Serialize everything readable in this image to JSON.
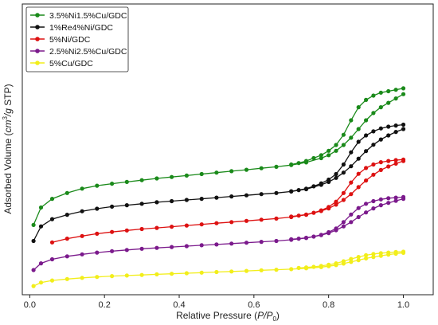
{
  "chart_data": {
    "type": "line",
    "title": "",
    "xlabel": "Relative Pressure (P/P0)",
    "ylabel": "Adsorbed Volume (cm3/g STP)",
    "xlim": [
      -0.02,
      1.08
    ],
    "ylim": [
      0,
      100
    ],
    "xticks": [
      "0.0",
      "0.2",
      "0.4",
      "0.6",
      "0.8",
      "1.0"
    ],
    "yticks_visible": false,
    "grid": false,
    "legend_position": "top-left",
    "series": [
      {
        "name": "3.5%Ni1.5%Cu/GDC",
        "color": "#1a8a1a",
        "adsorption": {
          "x": [
            0.01,
            0.03,
            0.06,
            0.1,
            0.14,
            0.18,
            0.22,
            0.26,
            0.3,
            0.34,
            0.38,
            0.42,
            0.46,
            0.5,
            0.54,
            0.58,
            0.62,
            0.66,
            0.7,
            0.74,
            0.78,
            0.8,
            0.82,
            0.84,
            0.86,
            0.88,
            0.9,
            0.92,
            0.94,
            0.96,
            0.98,
            1.0
          ],
          "y": [
            24,
            30,
            33,
            35,
            36.5,
            37.5,
            38.2,
            38.8,
            39.4,
            40,
            40.5,
            41,
            41.5,
            42,
            42.5,
            43,
            43.5,
            44,
            44.6,
            45.5,
            47,
            48,
            49.5,
            51.5,
            54,
            57,
            60,
            62.5,
            64.5,
            66,
            67.5,
            69
          ]
        },
        "desorption": {
          "x": [
            1.0,
            0.98,
            0.96,
            0.94,
            0.92,
            0.9,
            0.88,
            0.86,
            0.84,
            0.82,
            0.8,
            0.78,
            0.76,
            0.74,
            0.72,
            0.7
          ],
          "y": [
            71,
            70.5,
            70,
            69.5,
            68.5,
            67,
            64.5,
            60,
            55,
            51.5,
            49.5,
            48,
            47,
            46,
            45.3,
            44.8
          ]
        }
      },
      {
        "name": "1%Re4%Ni/GDC",
        "color": "#111111",
        "adsorption": {
          "x": [
            0.01,
            0.03,
            0.06,
            0.1,
            0.14,
            0.18,
            0.22,
            0.26,
            0.3,
            0.34,
            0.38,
            0.42,
            0.46,
            0.5,
            0.54,
            0.58,
            0.62,
            0.66,
            0.7,
            0.74,
            0.78,
            0.8,
            0.82,
            0.84,
            0.86,
            0.88,
            0.9,
            0.92,
            0.94,
            0.96,
            0.98,
            1.0
          ],
          "y": [
            18.5,
            23.5,
            26,
            27.5,
            28.7,
            29.6,
            30.3,
            30.8,
            31.3,
            31.8,
            32.2,
            32.6,
            33,
            33.4,
            33.8,
            34.2,
            34.6,
            35,
            35.5,
            36.3,
            37.8,
            38.8,
            40.2,
            42,
            44.2,
            46.8,
            49.4,
            51.6,
            53.4,
            54.8,
            56,
            57
          ]
        },
        "desorption": {
          "x": [
            1.0,
            0.98,
            0.96,
            0.94,
            0.92,
            0.9,
            0.88,
            0.86,
            0.84,
            0.82,
            0.8,
            0.78,
            0.76,
            0.74,
            0.72,
            0.7
          ],
          "y": [
            58.5,
            58.2,
            57.8,
            57.2,
            56.2,
            54.8,
            52.6,
            49,
            44.8,
            41.5,
            39.6,
            38.3,
            37.3,
            36.5,
            36,
            35.6
          ]
        }
      },
      {
        "name": "5%Ni/GDC",
        "color": "#dd1111",
        "adsorption": {
          "x": [
            0.06,
            0.1,
            0.14,
            0.18,
            0.22,
            0.26,
            0.3,
            0.34,
            0.38,
            0.42,
            0.46,
            0.5,
            0.54,
            0.58,
            0.62,
            0.66,
            0.7,
            0.74,
            0.78,
            0.8,
            0.82,
            0.84,
            0.86,
            0.88,
            0.9,
            0.92,
            0.94,
            0.96,
            0.98,
            1.0
          ],
          "y": [
            18,
            19.3,
            20.2,
            21,
            21.6,
            22.1,
            22.6,
            23,
            23.4,
            23.8,
            24.2,
            24.6,
            25,
            25.4,
            25.8,
            26.2,
            26.7,
            27.5,
            28.8,
            29.7,
            31,
            32.6,
            34.6,
            37,
            39.3,
            41.3,
            42.9,
            44.1,
            45.1,
            46
          ]
        },
        "desorption": {
          "x": [
            1.0,
            0.98,
            0.96,
            0.94,
            0.92,
            0.9,
            0.88,
            0.86,
            0.84,
            0.82,
            0.8,
            0.78,
            0.76,
            0.74,
            0.72,
            0.7
          ],
          "y": [
            46.5,
            46.3,
            46,
            45.6,
            44.8,
            43.6,
            41.6,
            38.6,
            35,
            32,
            30.2,
            29,
            28.2,
            27.6,
            27.2,
            26.9
          ]
        }
      },
      {
        "name": "2.5%Ni2.5%Cu/GDC",
        "color": "#7b1a8c",
        "adsorption": {
          "x": [
            0.01,
            0.03,
            0.06,
            0.1,
            0.14,
            0.18,
            0.22,
            0.26,
            0.3,
            0.34,
            0.38,
            0.42,
            0.46,
            0.5,
            0.54,
            0.58,
            0.62,
            0.66,
            0.7,
            0.74,
            0.78,
            0.8,
            0.82,
            0.84,
            0.86,
            0.88,
            0.9,
            0.92,
            0.94,
            0.96,
            0.98,
            1.0
          ],
          "y": [
            8.5,
            10.8,
            12.2,
            13.2,
            13.9,
            14.5,
            15,
            15.4,
            15.8,
            16.1,
            16.4,
            16.7,
            17,
            17.3,
            17.6,
            17.9,
            18.2,
            18.5,
            18.9,
            19.5,
            20.5,
            21.2,
            22.2,
            23.5,
            25,
            26.7,
            28.3,
            29.7,
            30.8,
            31.6,
            32.3,
            33
          ]
        },
        "desorption": {
          "x": [
            1.0,
            0.98,
            0.96,
            0.94,
            0.92,
            0.9,
            0.88,
            0.86,
            0.84,
            0.82,
            0.8,
            0.78,
            0.76,
            0.74,
            0.72,
            0.7
          ],
          "y": [
            33.6,
            33.4,
            33.2,
            32.8,
            32.2,
            31.3,
            29.8,
            27.6,
            25,
            22.8,
            21.5,
            20.6,
            20,
            19.6,
            19.3,
            19.1
          ]
        }
      },
      {
        "name": "5%Cu/GDC",
        "color": "#f2ee1a",
        "adsorption": {
          "x": [
            0.01,
            0.03,
            0.06,
            0.1,
            0.14,
            0.18,
            0.22,
            0.26,
            0.3,
            0.34,
            0.38,
            0.42,
            0.46,
            0.5,
            0.54,
            0.58,
            0.62,
            0.66,
            0.7,
            0.74,
            0.78,
            0.8,
            0.82,
            0.84,
            0.86,
            0.88,
            0.9,
            0.92,
            0.94,
            0.96,
            0.98,
            1.0
          ],
          "y": [
            3,
            4.2,
            4.9,
            5.4,
            5.8,
            6.1,
            6.4,
            6.6,
            6.8,
            7,
            7.2,
            7.4,
            7.6,
            7.8,
            8,
            8.2,
            8.4,
            8.6,
            8.8,
            9.1,
            9.5,
            9.8,
            10.2,
            10.7,
            11.3,
            11.9,
            12.5,
            13,
            13.4,
            13.8,
            14.1,
            14.4
          ]
        },
        "desorption": {
          "x": [
            1.0,
            0.98,
            0.96,
            0.94,
            0.92,
            0.9,
            0.88,
            0.86,
            0.84,
            0.82,
            0.8,
            0.78,
            0.76,
            0.74,
            0.72
          ],
          "y": [
            14.8,
            14.7,
            14.5,
            14.3,
            14,
            13.6,
            13,
            12.3,
            11.5,
            10.8,
            10.3,
            9.9,
            9.6,
            9.4,
            9.2
          ]
        }
      }
    ]
  }
}
